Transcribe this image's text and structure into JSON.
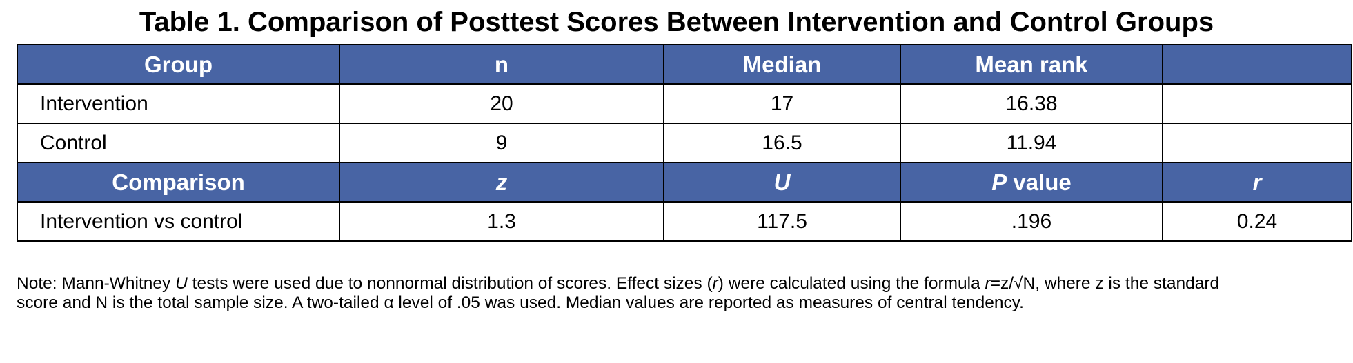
{
  "title": "Table 1. Comparison of Posttest Scores Between Intervention and Control Groups",
  "group_header": {
    "group": "Group",
    "n": "n",
    "median": "Median",
    "mean_rank": "Mean rank",
    "blank": ""
  },
  "group_rows": [
    {
      "group": "Intervention",
      "n": "20",
      "median": "17",
      "mean_rank": "16.38",
      "blank": ""
    },
    {
      "group": "Control",
      "n": "9",
      "median": "16.5",
      "mean_rank": "11.94",
      "blank": ""
    }
  ],
  "comparison_header": {
    "comparison": "Comparison",
    "z": "z",
    "u": "U",
    "p_italic": "P",
    "p_rest": " value",
    "r": "r"
  },
  "comparison_rows": [
    {
      "comparison": "Intervention vs control",
      "z": "1.3",
      "u": "117.5",
      "p": ".196",
      "r": "0.24"
    }
  ],
  "note": {
    "line1_a": "Note: Mann-Whitney ",
    "line1_u": "U",
    "line1_b": " tests were used due to nonnormal distribution of scores. Effect sizes (",
    "line1_r1": "r",
    "line1_c": ") were calculated using the formula ",
    "line1_r2": "r",
    "line1_d": "=z/√N, where z is the standard",
    "line2": "score and N is the total sample size. A two-tailed α level of .05 was used. Median values are reported as measures of central tendency."
  },
  "colors": {
    "header_fill": "#4864a4",
    "header_text": "#ffffff",
    "border": "#000000"
  }
}
